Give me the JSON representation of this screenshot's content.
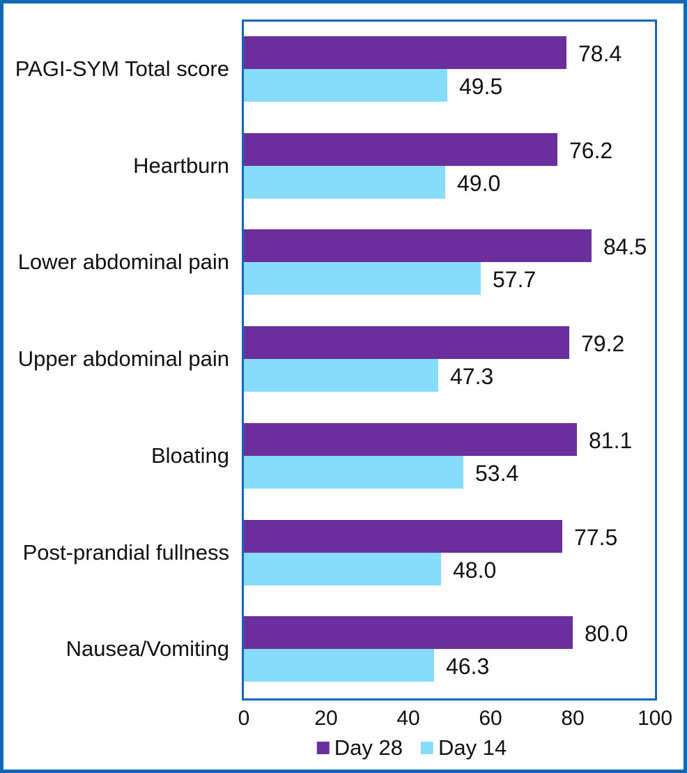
{
  "chart_data": {
    "type": "bar",
    "orientation": "horizontal",
    "title": "",
    "categories": [
      "PAGI-SYM Total score",
      "Heartburn",
      "Lower abdominal pain",
      "Upper abdominal pain",
      "Bloating",
      "Post-prandial fullness",
      "Nausea/Vomiting"
    ],
    "series": [
      {
        "name": "Day 28",
        "color": "#6B2E9D",
        "values": [
          78.4,
          76.2,
          84.5,
          79.2,
          81.1,
          77.5,
          80.0
        ]
      },
      {
        "name": "Day 14",
        "color": "#86DCFA",
        "values": [
          49.5,
          49.0,
          57.7,
          47.3,
          53.4,
          48.0,
          46.3
        ]
      }
    ],
    "data_labels": true,
    "value_label_decimals": 1,
    "xlabel": "",
    "ylabel": "",
    "xlim": [
      0,
      100
    ],
    "x_ticks": [
      0,
      20,
      40,
      60,
      80,
      100
    ],
    "grid": false,
    "legend_position": "bottom",
    "plot_border_color": "#1467B4",
    "frame_border_color": "#1467B4",
    "text_color": "#111111",
    "background_color": "#ffffff"
  }
}
